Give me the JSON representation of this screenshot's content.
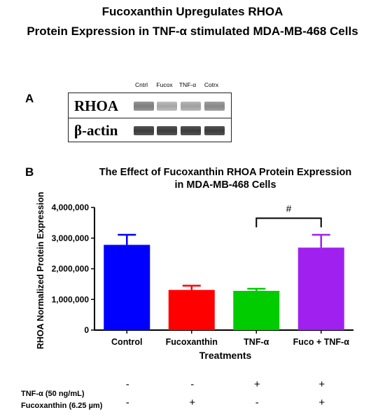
{
  "figure": {
    "title_line1": "Fucoxanthin Upregulates RHOA",
    "title_line2": "Protein Expression in TNF-α stimulated MDA-MB-468 Cells"
  },
  "panel_a": {
    "label": "A",
    "lanes": [
      "Cntrl",
      "Fucox",
      "TNF-α",
      "Cotrx"
    ],
    "rows": [
      {
        "name": "RHOA",
        "band_intensity": [
          0.55,
          0.35,
          0.38,
          0.5
        ]
      },
      {
        "name": "β-actin",
        "band_intensity": [
          0.88,
          0.88,
          0.88,
          0.88
        ]
      }
    ]
  },
  "panel_b_label": "B",
  "chart_data": {
    "type": "bar",
    "title": "The Effect of Fucoxanthin RHOA Protein Expression in MDA-MB-468 Cells",
    "title_line1": "The Effect of Fucoxanthin RHOA Protein Expression",
    "title_line2": "in MDA-MB-468 Cells",
    "xlabel": "Treatments",
    "ylabel": "RHOA Normalized Protein Expression",
    "categories": [
      "Control",
      "Fucoxanthin",
      "TNF-α",
      "Fuco + TNF-α"
    ],
    "values": [
      2780000,
      1310000,
      1280000,
      2690000
    ],
    "errors": [
      330000,
      140000,
      70000,
      420000
    ],
    "colors": [
      "#0000ff",
      "#ff0000",
      "#00cc00",
      "#a020f0"
    ],
    "ylim": [
      0,
      4000000
    ],
    "yticks": [
      0,
      1000000,
      2000000,
      3000000,
      4000000
    ],
    "ytick_labels": [
      "0",
      "1,000,000",
      "2,000,000",
      "3,000,000",
      "4,000,000"
    ],
    "significance": {
      "from": "TNF-α",
      "to": "Fuco + TNF-α",
      "label": "#"
    }
  },
  "treatments": {
    "rows": [
      {
        "label": "TNF-α (50 ng/mL)",
        "signs": [
          "-",
          "-",
          "+",
          "+"
        ]
      },
      {
        "label": "Fucoxanthin (6.25 µm)",
        "signs": [
          "-",
          "+",
          "-",
          "+"
        ]
      }
    ]
  }
}
